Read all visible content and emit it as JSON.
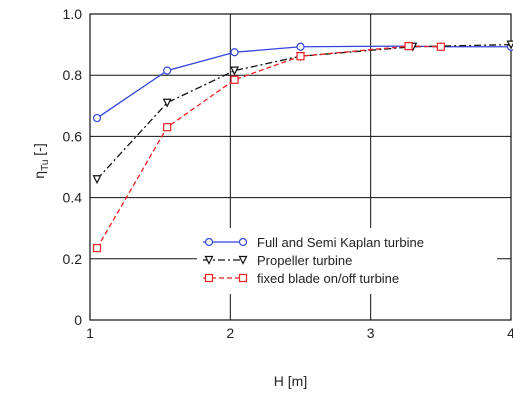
{
  "chart_data": {
    "type": "line",
    "xlabel": "H [m]",
    "ylabel": "η",
    "ylabel_sub": "Tu",
    "ylabel_unit": "[-]",
    "xlim": [
      1,
      4
    ],
    "ylim": [
      0,
      1.0
    ],
    "x_ticks": [
      1,
      2,
      3,
      4
    ],
    "y_ticks": [
      "0",
      "0.2",
      "0.4",
      "0.6",
      "0.8",
      "1.0"
    ],
    "y_tick_values": [
      0,
      0.2,
      0.4,
      0.6,
      0.8,
      1.0
    ],
    "grid": true,
    "legend_position": "bottom-right",
    "series": [
      {
        "name": "Full and Semi Kaplan turbine",
        "color": "#3344dd",
        "dash": "solid",
        "marker": "circle",
        "x": [
          1.05,
          1.55,
          2.03,
          2.5,
          3.27,
          3.5,
          4.0
        ],
        "y": [
          0.66,
          0.815,
          0.875,
          0.893,
          0.895,
          0.893,
          0.893
        ]
      },
      {
        "name": "Propeller turbine",
        "color": "#111111",
        "dash": "dashdot",
        "marker": "triangle-down",
        "x": [
          1.05,
          1.55,
          2.03,
          2.5,
          3.3,
          4.0
        ],
        "y": [
          0.46,
          0.71,
          0.815,
          0.862,
          0.893,
          0.9
        ]
      },
      {
        "name": "fixed blade on/off turbine",
        "color": "#ee2222",
        "dash": "dashed",
        "marker": "square",
        "x": [
          1.05,
          1.55,
          2.03,
          2.5,
          3.27,
          3.5
        ],
        "y": [
          0.235,
          0.63,
          0.785,
          0.862,
          0.895,
          0.893
        ]
      }
    ]
  }
}
